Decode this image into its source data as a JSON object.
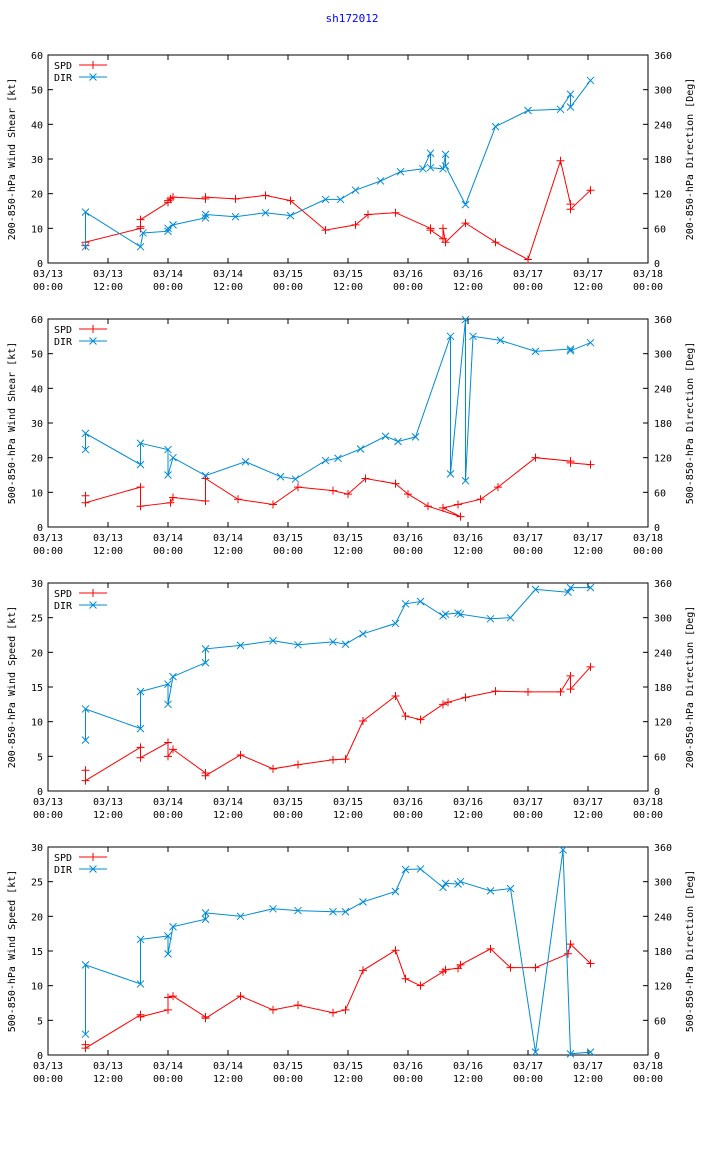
{
  "title": "sh172012",
  "colors": {
    "title": "#0000ff",
    "spd": "#ff0000",
    "dir": "#008bd5",
    "axis": "#000000"
  },
  "x_ticks": [
    [
      "03/13",
      "00:00"
    ],
    [
      "03/13",
      "12:00"
    ],
    [
      "03/14",
      "00:00"
    ],
    [
      "03/14",
      "12:00"
    ],
    [
      "03/15",
      "00:00"
    ],
    [
      "03/15",
      "12:00"
    ],
    [
      "03/16",
      "00:00"
    ],
    [
      "03/16",
      "12:00"
    ],
    [
      "03/17",
      "00:00"
    ],
    [
      "03/17",
      "12:00"
    ],
    [
      "03/18",
      "00:00"
    ]
  ],
  "chart_data": [
    {
      "type": "line",
      "ylabel": "200-850-hPa Wind Shear [kt]",
      "y2label": "200-850-hPa Direction [Deg]",
      "ylim": [
        0,
        60
      ],
      "yticks": [
        0,
        10,
        20,
        30,
        40,
        50,
        60
      ],
      "y2lim": [
        0,
        360
      ],
      "y2ticks": [
        0,
        60,
        120,
        180,
        240,
        300,
        360
      ],
      "xlim": [
        0,
        120
      ],
      "x_unit": "hours since 03/13 00:00",
      "series": [
        {
          "name": "SPD",
          "axis": "y1",
          "x": [
            7.5,
            7.5,
            18.5,
            18.5,
            18.5,
            24.0,
            24.0,
            24.5,
            25.0,
            31.5,
            31.5,
            37.5,
            43.5,
            48.5,
            55.5,
            61.5,
            64.0,
            69.5,
            76.5,
            76.5,
            79.0,
            79.0,
            79.5,
            83.5,
            89.5,
            96.0,
            102.5,
            104.5,
            104.5,
            108.5
          ],
          "y": [
            5,
            6,
            10,
            10.5,
            12.5,
            17.5,
            18,
            18.5,
            19,
            18.5,
            19,
            18.5,
            19.5,
            18,
            9.5,
            11,
            14,
            14.5,
            10,
            9.5,
            7,
            10,
            6,
            11.5,
            6,
            1,
            29.5,
            17,
            15.5,
            21
          ]
        },
        {
          "name": "DIR",
          "axis": "y2",
          "x": [
            7.5,
            7.5,
            18.5,
            19.0,
            24.0,
            24.0,
            25.0,
            31.5,
            31.5,
            37.5,
            43.5,
            48.5,
            55.5,
            58.5,
            61.5,
            66.5,
            70.5,
            75.0,
            76.5,
            76.5,
            79.0,
            79.5,
            79.5,
            83.5,
            89.5,
            96.0,
            102.5,
            104.5,
            104.5,
            108.5
          ],
          "y": [
            28,
            88,
            28,
            52,
            55,
            60,
            66,
            78,
            84,
            80,
            87,
            82,
            110,
            110,
            126,
            142,
            158,
            163,
            190,
            165,
            163,
            188,
            168,
            101,
            236,
            264,
            266,
            292,
            270,
            316
          ]
        }
      ]
    },
    {
      "type": "line",
      "ylabel": "500-850-hPa Wind Shear [kt]",
      "y2label": "500-850-hPa Direction [Deg]",
      "ylim": [
        0,
        60
      ],
      "yticks": [
        0,
        10,
        20,
        30,
        40,
        50,
        60
      ],
      "y2lim": [
        0,
        360
      ],
      "y2ticks": [
        0,
        60,
        120,
        180,
        240,
        300,
        360
      ],
      "xlim": [
        0,
        120
      ],
      "x_unit": "hours since 03/13 00:00",
      "series": [
        {
          "name": "SPD",
          "axis": "y1",
          "x": [
            7.5,
            7.5,
            18.5,
            18.5,
            24.5,
            25.0,
            31.5,
            31.5,
            38.0,
            45.0,
            50.0,
            57.0,
            60.0,
            63.5,
            69.5,
            72.0,
            76.0,
            82.5,
            79.0,
            82.0,
            86.5,
            90.0,
            97.5,
            104.5,
            104.5,
            108.5
          ],
          "y": [
            9,
            7,
            11.5,
            6,
            7,
            8.5,
            7.5,
            14,
            8,
            6.5,
            11.5,
            10.5,
            9.5,
            14,
            12.5,
            9.5,
            6,
            3,
            5.5,
            6.5,
            8,
            11.5,
            20,
            19,
            18.5,
            18
          ],
          "order": [
            0,
            1,
            2,
            3,
            4,
            5,
            6,
            7,
            8,
            9,
            10,
            11,
            12,
            13,
            14,
            15,
            16,
            17,
            18,
            19,
            20,
            21,
            22,
            23,
            24,
            25
          ]
        },
        {
          "name": "DIR",
          "axis": "y2",
          "x": [
            7.5,
            7.5,
            18.5,
            18.5,
            24.0,
            24.0,
            25.0,
            31.5,
            39.5,
            46.5,
            49.5,
            55.5,
            58.0,
            62.5,
            67.5,
            70.0,
            73.5,
            80.5,
            80.5,
            83.5,
            83.5,
            85.0,
            90.5,
            97.5,
            104.5,
            104.5,
            108.5
          ],
          "y": [
            134,
            162,
            108,
            145,
            134,
            90,
            120,
            89,
            113,
            87,
            83,
            115,
            119,
            135,
            157,
            148,
            156,
            330,
            92,
            359,
            80,
            330,
            323,
            304,
            308,
            305,
            319
          ]
        }
      ]
    },
    {
      "type": "line",
      "ylabel": "200-850-hPa Wind Speed [kt]",
      "y2label": "200-850-hPa Direction [Deg]",
      "ylim": [
        0,
        30
      ],
      "yticks": [
        0,
        5,
        10,
        15,
        20,
        25,
        30
      ],
      "y2lim": [
        0,
        360
      ],
      "y2ticks": [
        0,
        60,
        120,
        180,
        240,
        300,
        360
      ],
      "xlim": [
        0,
        120
      ],
      "x_unit": "hours since 03/13 00:00",
      "series": [
        {
          "name": "SPD",
          "axis": "y1",
          "x": [
            7.5,
            7.5,
            18.5,
            18.5,
            24.0,
            24.0,
            25.0,
            31.5,
            31.5,
            38.5,
            45.0,
            50.0,
            57.0,
            59.5,
            63.0,
            69.5,
            71.5,
            74.5,
            79.0,
            80.0,
            83.5,
            89.5,
            96.0,
            102.5,
            104.5,
            104.5,
            108.5
          ],
          "y": [
            3,
            1.5,
            6.3,
            4.8,
            7,
            5,
            6,
            2.6,
            2.2,
            5.2,
            3.2,
            3.8,
            4.5,
            4.6,
            10.1,
            13.7,
            10.8,
            10.3,
            12.5,
            12.8,
            13.5,
            14.4,
            14.3,
            14.3,
            16.6,
            14.7,
            17.9
          ],
          "order": [
            0,
            1,
            2,
            3,
            4,
            5,
            6,
            7,
            8,
            9,
            10,
            11,
            12,
            13,
            14,
            15,
            16,
            17,
            18,
            19,
            20,
            21,
            22,
            23,
            24,
            25,
            26
          ]
        },
        {
          "name": "DIR",
          "axis": "y2",
          "x": [
            7.5,
            7.5,
            18.5,
            18.5,
            24.0,
            24.0,
            25.0,
            31.5,
            31.5,
            38.5,
            45.0,
            50.0,
            57.0,
            59.5,
            63.0,
            69.5,
            71.5,
            74.5,
            79.0,
            79.5,
            82.0,
            82.5,
            88.5,
            92.5,
            97.5,
            104.0,
            104.5,
            108.5
          ],
          "y": [
            88,
            142,
            108,
            172,
            185,
            150,
            198,
            222,
            246,
            252,
            260,
            253,
            258,
            254,
            272,
            290,
            324,
            328,
            303,
            306,
            308,
            306,
            298,
            300,
            349,
            344,
            352,
            352
          ]
        }
      ]
    },
    {
      "type": "line",
      "ylabel": "500-850-hPa Wind Speed [kt]",
      "y2label": "500-850-hPa Direction [Deg]",
      "ylim": [
        0,
        30
      ],
      "yticks": [
        0,
        5,
        10,
        15,
        20,
        25,
        30
      ],
      "y2lim": [
        0,
        360
      ],
      "y2ticks": [
        0,
        60,
        120,
        180,
        240,
        300,
        360
      ],
      "xlim": [
        0,
        120
      ],
      "x_unit": "hours since 03/13 00:00",
      "series": [
        {
          "name": "SPD",
          "axis": "y1",
          "x": [
            7.5,
            7.5,
            18.5,
            18.5,
            24.0,
            24.0,
            25.0,
            31.5,
            31.5,
            38.5,
            45.0,
            50.0,
            57.0,
            59.5,
            63.0,
            69.5,
            71.5,
            74.5,
            79.0,
            79.5,
            82.0,
            82.5,
            88.5,
            92.5,
            97.5,
            104.0,
            104.5,
            108.5
          ],
          "y": [
            1.5,
            1,
            5.8,
            5.5,
            6.5,
            8.3,
            8.5,
            5.5,
            5.3,
            8.5,
            6.5,
            7.2,
            6.1,
            6.5,
            12.2,
            15.1,
            11,
            10,
            12,
            12.3,
            12.5,
            13,
            15.3,
            12.6,
            12.6,
            14.6,
            16,
            13.2
          ],
          "order": [
            0,
            1,
            2,
            3,
            4,
            5,
            6,
            7,
            8,
            9,
            10,
            11,
            12,
            13,
            14,
            15,
            16,
            17,
            18,
            19,
            20,
            21,
            22,
            23,
            24,
            25,
            26,
            27
          ]
        },
        {
          "name": "DIR",
          "axis": "y2",
          "x": [
            7.5,
            7.5,
            18.5,
            18.5,
            24.0,
            24.0,
            25.0,
            31.5,
            31.5,
            38.5,
            45.0,
            50.0,
            57.0,
            59.5,
            63.0,
            69.5,
            71.5,
            74.5,
            79.0,
            79.5,
            82.0,
            82.5,
            88.5,
            92.5,
            97.5,
            103.0,
            104.5,
            108.5
          ],
          "y": [
            36,
            156,
            123,
            200,
            206,
            175,
            222,
            235,
            246,
            240,
            253,
            250,
            248,
            248,
            265,
            283,
            321,
            322,
            290,
            297,
            296,
            300,
            284,
            288,
            5,
            355,
            2,
            5
          ]
        }
      ]
    }
  ]
}
